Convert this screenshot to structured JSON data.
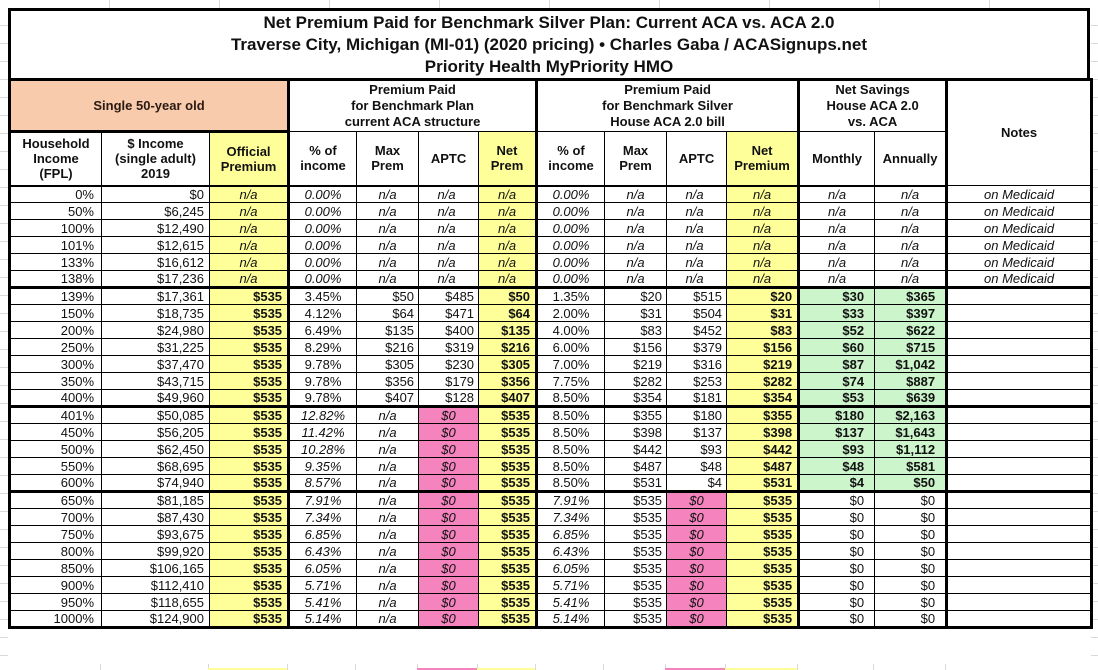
{
  "title": {
    "line1": "Net Premium Paid for Benchmark Silver Plan: Current ACA vs. ACA 2.0",
    "line2": "Traverse City, Michigan (MI-01) (2020 pricing) • Charles Gaba / ACASignups.net",
    "line3": "Priority Health MyPriority HMO"
  },
  "groups": {
    "demographic": "Single 50-year old",
    "aca": "Premium Paid\nfor Benchmark Plan\ncurrent ACA structure",
    "house": "Premium Paid\nfor Benchmark Silver\nHouse ACA 2.0 bill",
    "savings": "Net Savings\nHouse ACA 2.0\nvs. ACA",
    "notes": "Notes"
  },
  "columns": [
    "Household\nIncome\n(FPL)",
    "$ Income\n(single adult)\n2019",
    "Official\nPremium",
    "% of\nincome",
    "Max\nPrem",
    "APTC",
    "Net\nPrem",
    "% of\nincome",
    "Max\nPrem",
    "APTC",
    "Net\nPremium",
    "Monthly",
    "Annually"
  ],
  "colors": {
    "highlight_yellow": "#FFFF99",
    "header_peach": "#F8CBAD",
    "zero_aptc_pink": "#F483BE",
    "savings_green": "#CCF5CC"
  },
  "na_label": "n/a",
  "rows": [
    {
      "section": "medicaid",
      "fpl": "0%",
      "income": "$0",
      "official": "n/a",
      "aca_pct": "0.00%",
      "aca_max": "n/a",
      "aca_aptc": "n/a",
      "aca_net": "n/a",
      "h_pct": "0.00%",
      "h_max": "n/a",
      "h_aptc": "n/a",
      "h_net": "n/a",
      "monthly": "n/a",
      "annually": "n/a",
      "notes": "on Medicaid"
    },
    {
      "section": "medicaid",
      "fpl": "50%",
      "income": "$6,245",
      "official": "n/a",
      "aca_pct": "0.00%",
      "aca_max": "n/a",
      "aca_aptc": "n/a",
      "aca_net": "n/a",
      "h_pct": "0.00%",
      "h_max": "n/a",
      "h_aptc": "n/a",
      "h_net": "n/a",
      "monthly": "n/a",
      "annually": "n/a",
      "notes": "on Medicaid"
    },
    {
      "section": "medicaid",
      "fpl": "100%",
      "income": "$12,490",
      "official": "n/a",
      "aca_pct": "0.00%",
      "aca_max": "n/a",
      "aca_aptc": "n/a",
      "aca_net": "n/a",
      "h_pct": "0.00%",
      "h_max": "n/a",
      "h_aptc": "n/a",
      "h_net": "n/a",
      "monthly": "n/a",
      "annually": "n/a",
      "notes": "on Medicaid"
    },
    {
      "section": "medicaid",
      "fpl": "101%",
      "income": "$12,615",
      "official": "n/a",
      "aca_pct": "0.00%",
      "aca_max": "n/a",
      "aca_aptc": "n/a",
      "aca_net": "n/a",
      "h_pct": "0.00%",
      "h_max": "n/a",
      "h_aptc": "n/a",
      "h_net": "n/a",
      "monthly": "n/a",
      "annually": "n/a",
      "notes": "on Medicaid"
    },
    {
      "section": "medicaid",
      "fpl": "133%",
      "income": "$16,612",
      "official": "n/a",
      "aca_pct": "0.00%",
      "aca_max": "n/a",
      "aca_aptc": "n/a",
      "aca_net": "n/a",
      "h_pct": "0.00%",
      "h_max": "n/a",
      "h_aptc": "n/a",
      "h_net": "n/a",
      "monthly": "n/a",
      "annually": "n/a",
      "notes": "on Medicaid"
    },
    {
      "section": "medicaid",
      "fpl": "138%",
      "income": "$17,236",
      "official": "n/a",
      "aca_pct": "0.00%",
      "aca_max": "n/a",
      "aca_aptc": "n/a",
      "aca_net": "n/a",
      "h_pct": "0.00%",
      "h_max": "n/a",
      "h_aptc": "n/a",
      "h_net": "n/a",
      "monthly": "n/a",
      "annually": "n/a",
      "notes": "on Medicaid"
    },
    {
      "section": "subsidized",
      "fpl": "139%",
      "income": "$17,361",
      "official": "$535",
      "aca_pct": "3.45%",
      "aca_max": "$50",
      "aca_aptc": "$485",
      "aca_net": "$50",
      "h_pct": "1.35%",
      "h_max": "$20",
      "h_aptc": "$515",
      "h_net": "$20",
      "monthly": "$30",
      "annually": "$365",
      "notes": ""
    },
    {
      "section": "subsidized",
      "fpl": "150%",
      "income": "$18,735",
      "official": "$535",
      "aca_pct": "4.12%",
      "aca_max": "$64",
      "aca_aptc": "$471",
      "aca_net": "$64",
      "h_pct": "2.00%",
      "h_max": "$31",
      "h_aptc": "$504",
      "h_net": "$31",
      "monthly": "$33",
      "annually": "$397",
      "notes": ""
    },
    {
      "section": "subsidized",
      "fpl": "200%",
      "income": "$24,980",
      "official": "$535",
      "aca_pct": "6.49%",
      "aca_max": "$135",
      "aca_aptc": "$400",
      "aca_net": "$135",
      "h_pct": "4.00%",
      "h_max": "$83",
      "h_aptc": "$452",
      "h_net": "$83",
      "monthly": "$52",
      "annually": "$622",
      "notes": ""
    },
    {
      "section": "subsidized",
      "fpl": "250%",
      "income": "$31,225",
      "official": "$535",
      "aca_pct": "8.29%",
      "aca_max": "$216",
      "aca_aptc": "$319",
      "aca_net": "$216",
      "h_pct": "6.00%",
      "h_max": "$156",
      "h_aptc": "$379",
      "h_net": "$156",
      "monthly": "$60",
      "annually": "$715",
      "notes": ""
    },
    {
      "section": "subsidized",
      "fpl": "300%",
      "income": "$37,470",
      "official": "$535",
      "aca_pct": "9.78%",
      "aca_max": "$305",
      "aca_aptc": "$230",
      "aca_net": "$305",
      "h_pct": "7.00%",
      "h_max": "$219",
      "h_aptc": "$316",
      "h_net": "$219",
      "monthly": "$87",
      "annually": "$1,042",
      "notes": ""
    },
    {
      "section": "subsidized",
      "fpl": "350%",
      "income": "$43,715",
      "official": "$535",
      "aca_pct": "9.78%",
      "aca_max": "$356",
      "aca_aptc": "$179",
      "aca_net": "$356",
      "h_pct": "7.75%",
      "h_max": "$282",
      "h_aptc": "$253",
      "h_net": "$282",
      "monthly": "$74",
      "annually": "$887",
      "notes": ""
    },
    {
      "section": "subsidized",
      "fpl": "400%",
      "income": "$49,960",
      "official": "$535",
      "aca_pct": "9.78%",
      "aca_max": "$407",
      "aca_aptc": "$128",
      "aca_net": "$407",
      "h_pct": "8.50%",
      "h_max": "$354",
      "h_aptc": "$181",
      "h_net": "$354",
      "monthly": "$53",
      "annually": "$639",
      "notes": ""
    },
    {
      "section": "cliff",
      "fpl": "401%",
      "income": "$50,085",
      "official": "$535",
      "aca_pct": "12.82%",
      "aca_max": "n/a",
      "aca_aptc": "$0",
      "aca_net": "$535",
      "h_pct": "8.50%",
      "h_max": "$355",
      "h_aptc": "$180",
      "h_net": "$355",
      "monthly": "$180",
      "annually": "$2,163",
      "notes": ""
    },
    {
      "section": "cliff",
      "fpl": "450%",
      "income": "$56,205",
      "official": "$535",
      "aca_pct": "11.42%",
      "aca_max": "n/a",
      "aca_aptc": "$0",
      "aca_net": "$535",
      "h_pct": "8.50%",
      "h_max": "$398",
      "h_aptc": "$137",
      "h_net": "$398",
      "monthly": "$137",
      "annually": "$1,643",
      "notes": ""
    },
    {
      "section": "cliff",
      "fpl": "500%",
      "income": "$62,450",
      "official": "$535",
      "aca_pct": "10.28%",
      "aca_max": "n/a",
      "aca_aptc": "$0",
      "aca_net": "$535",
      "h_pct": "8.50%",
      "h_max": "$442",
      "h_aptc": "$93",
      "h_net": "$442",
      "monthly": "$93",
      "annually": "$1,112",
      "notes": ""
    },
    {
      "section": "cliff",
      "fpl": "550%",
      "income": "$68,695",
      "official": "$535",
      "aca_pct": "9.35%",
      "aca_max": "n/a",
      "aca_aptc": "$0",
      "aca_net": "$535",
      "h_pct": "8.50%",
      "h_max": "$487",
      "h_aptc": "$48",
      "h_net": "$487",
      "monthly": "$48",
      "annually": "$581",
      "notes": ""
    },
    {
      "section": "cliff",
      "fpl": "600%",
      "income": "$74,940",
      "official": "$535",
      "aca_pct": "8.57%",
      "aca_max": "n/a",
      "aca_aptc": "$0",
      "aca_net": "$535",
      "h_pct": "8.50%",
      "h_max": "$531",
      "h_aptc": "$4",
      "h_net": "$531",
      "monthly": "$4",
      "annually": "$50",
      "notes": ""
    },
    {
      "section": "over600",
      "fpl": "650%",
      "income": "$81,185",
      "official": "$535",
      "aca_pct": "7.91%",
      "aca_max": "n/a",
      "aca_aptc": "$0",
      "aca_net": "$535",
      "h_pct": "7.91%",
      "h_max": "$535",
      "h_aptc": "$0",
      "h_net": "$535",
      "monthly": "$0",
      "annually": "$0",
      "notes": ""
    },
    {
      "section": "over600",
      "fpl": "700%",
      "income": "$87,430",
      "official": "$535",
      "aca_pct": "7.34%",
      "aca_max": "n/a",
      "aca_aptc": "$0",
      "aca_net": "$535",
      "h_pct": "7.34%",
      "h_max": "$535",
      "h_aptc": "$0",
      "h_net": "$535",
      "monthly": "$0",
      "annually": "$0",
      "notes": ""
    },
    {
      "section": "over600",
      "fpl": "750%",
      "income": "$93,675",
      "official": "$535",
      "aca_pct": "6.85%",
      "aca_max": "n/a",
      "aca_aptc": "$0",
      "aca_net": "$535",
      "h_pct": "6.85%",
      "h_max": "$535",
      "h_aptc": "$0",
      "h_net": "$535",
      "monthly": "$0",
      "annually": "$0",
      "notes": ""
    },
    {
      "section": "over600",
      "fpl": "800%",
      "income": "$99,920",
      "official": "$535",
      "aca_pct": "6.43%",
      "aca_max": "n/a",
      "aca_aptc": "$0",
      "aca_net": "$535",
      "h_pct": "6.43%",
      "h_max": "$535",
      "h_aptc": "$0",
      "h_net": "$535",
      "monthly": "$0",
      "annually": "$0",
      "notes": ""
    },
    {
      "section": "over600",
      "fpl": "850%",
      "income": "$106,165",
      "official": "$535",
      "aca_pct": "6.05%",
      "aca_max": "n/a",
      "aca_aptc": "$0",
      "aca_net": "$535",
      "h_pct": "6.05%",
      "h_max": "$535",
      "h_aptc": "$0",
      "h_net": "$535",
      "monthly": "$0",
      "annually": "$0",
      "notes": ""
    },
    {
      "section": "over600",
      "fpl": "900%",
      "income": "$112,410",
      "official": "$535",
      "aca_pct": "5.71%",
      "aca_max": "n/a",
      "aca_aptc": "$0",
      "aca_net": "$535",
      "h_pct": "5.71%",
      "h_max": "$535",
      "h_aptc": "$0",
      "h_net": "$535",
      "monthly": "$0",
      "annually": "$0",
      "notes": ""
    },
    {
      "section": "over600",
      "fpl": "950%",
      "income": "$118,655",
      "official": "$535",
      "aca_pct": "5.41%",
      "aca_max": "n/a",
      "aca_aptc": "$0",
      "aca_net": "$535",
      "h_pct": "5.41%",
      "h_max": "$535",
      "h_aptc": "$0",
      "h_net": "$535",
      "monthly": "$0",
      "annually": "$0",
      "notes": ""
    },
    {
      "section": "over600",
      "fpl": "1000%",
      "income": "$124,900",
      "official": "$535",
      "aca_pct": "5.14%",
      "aca_max": "n/a",
      "aca_aptc": "$0",
      "aca_net": "$535",
      "h_pct": "5.14%",
      "h_max": "$535",
      "h_aptc": "$0",
      "h_net": "$535",
      "monthly": "$0",
      "annually": "$0",
      "notes": ""
    }
  ]
}
